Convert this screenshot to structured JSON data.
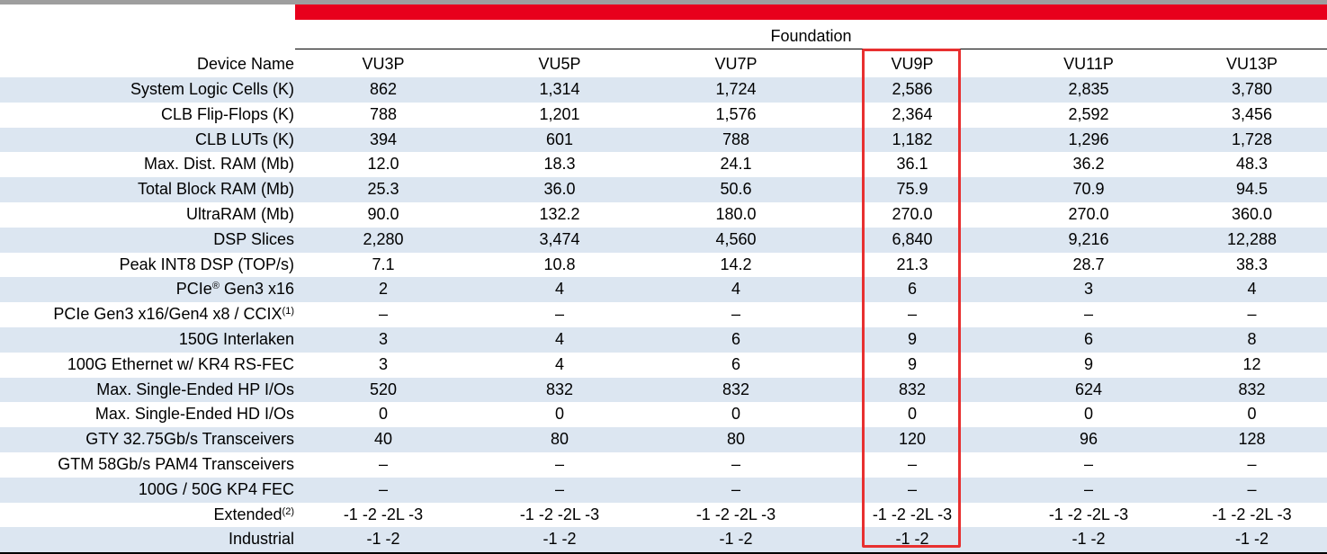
{
  "table": {
    "group_header": "Foundation",
    "header_label": "Device Name",
    "devices": [
      "VU3P",
      "VU5P",
      "VU7P",
      "VU9P",
      "VU11P",
      "VU13P"
    ],
    "rows": [
      {
        "label": "System Logic Cells (K)",
        "values": [
          "862",
          "1,314",
          "1,724",
          "2,586",
          "2,835",
          "3,780"
        ]
      },
      {
        "label": "CLB Flip-Flops (K)",
        "values": [
          "788",
          "1,201",
          "1,576",
          "2,364",
          "2,592",
          "3,456"
        ]
      },
      {
        "label": "CLB LUTs (K)",
        "values": [
          "394",
          "601",
          "788",
          "1,182",
          "1,296",
          "1,728"
        ]
      },
      {
        "label": "Max. Dist. RAM (Mb)",
        "values": [
          "12.0",
          "18.3",
          "24.1",
          "36.1",
          "36.2",
          "48.3"
        ]
      },
      {
        "label": "Total Block RAM (Mb)",
        "values": [
          "25.3",
          "36.0",
          "50.6",
          "75.9",
          "70.9",
          "94.5"
        ]
      },
      {
        "label": "UltraRAM (Mb)",
        "values": [
          "90.0",
          "132.2",
          "180.0",
          "270.0",
          "270.0",
          "360.0"
        ]
      },
      {
        "label": "DSP Slices",
        "values": [
          "2,280",
          "3,474",
          "4,560",
          "6,840",
          "9,216",
          "12,288"
        ]
      },
      {
        "label": "Peak INT8 DSP (TOP/s)",
        "values": [
          "7.1",
          "10.8",
          "14.2",
          "21.3",
          "28.7",
          "38.3"
        ]
      },
      {
        "label": "PCIe",
        "sup": "®",
        "label_suffix": " Gen3 x16",
        "values": [
          "2",
          "4",
          "4",
          "6",
          "3",
          "4"
        ]
      },
      {
        "label": "PCIe Gen3 x16/Gen4 x8 / CCIX",
        "sup": "(1)",
        "label_suffix": "",
        "values": [
          "–",
          "–",
          "–",
          "–",
          "–",
          "–"
        ]
      },
      {
        "label": "150G Interlaken",
        "values": [
          "3",
          "4",
          "6",
          "9",
          "6",
          "8"
        ]
      },
      {
        "label": "100G Ethernet w/ KR4 RS-FEC",
        "values": [
          "3",
          "4",
          "6",
          "9",
          "9",
          "12"
        ]
      },
      {
        "label": "Max. Single-Ended HP I/Os",
        "values": [
          "520",
          "832",
          "832",
          "832",
          "624",
          "832"
        ]
      },
      {
        "label": "Max. Single-Ended HD I/Os",
        "values": [
          "0",
          "0",
          "0",
          "0",
          "0",
          "0"
        ]
      },
      {
        "label": "GTY 32.75Gb/s Transceivers",
        "values": [
          "40",
          "80",
          "80",
          "120",
          "96",
          "128"
        ]
      },
      {
        "label": "GTM 58Gb/s PAM4 Transceivers",
        "values": [
          "–",
          "–",
          "–",
          "–",
          "–",
          "–"
        ]
      },
      {
        "label": "100G / 50G KP4 FEC",
        "values": [
          "–",
          "–",
          "–",
          "–",
          "–",
          "–"
        ]
      },
      {
        "label": "Extended",
        "sup": "(2)",
        "label_suffix": "",
        "values": [
          "-1 -2 -2L -3",
          "-1 -2 -2L -3",
          "-1 -2 -2L -3",
          "-1 -2 -2L -3",
          "-1 -2 -2L -3",
          "-1 -2 -2L -3"
        ]
      },
      {
        "label": "Industrial",
        "values": [
          "-1 -2",
          "-1 -2",
          "-1 -2",
          "-1 -2",
          "-1 -2",
          "-1 -2"
        ]
      }
    ]
  },
  "colors": {
    "accent_red": "#e8001c",
    "row_shade": "#dce6f1",
    "highlight_box": "#e83030"
  }
}
